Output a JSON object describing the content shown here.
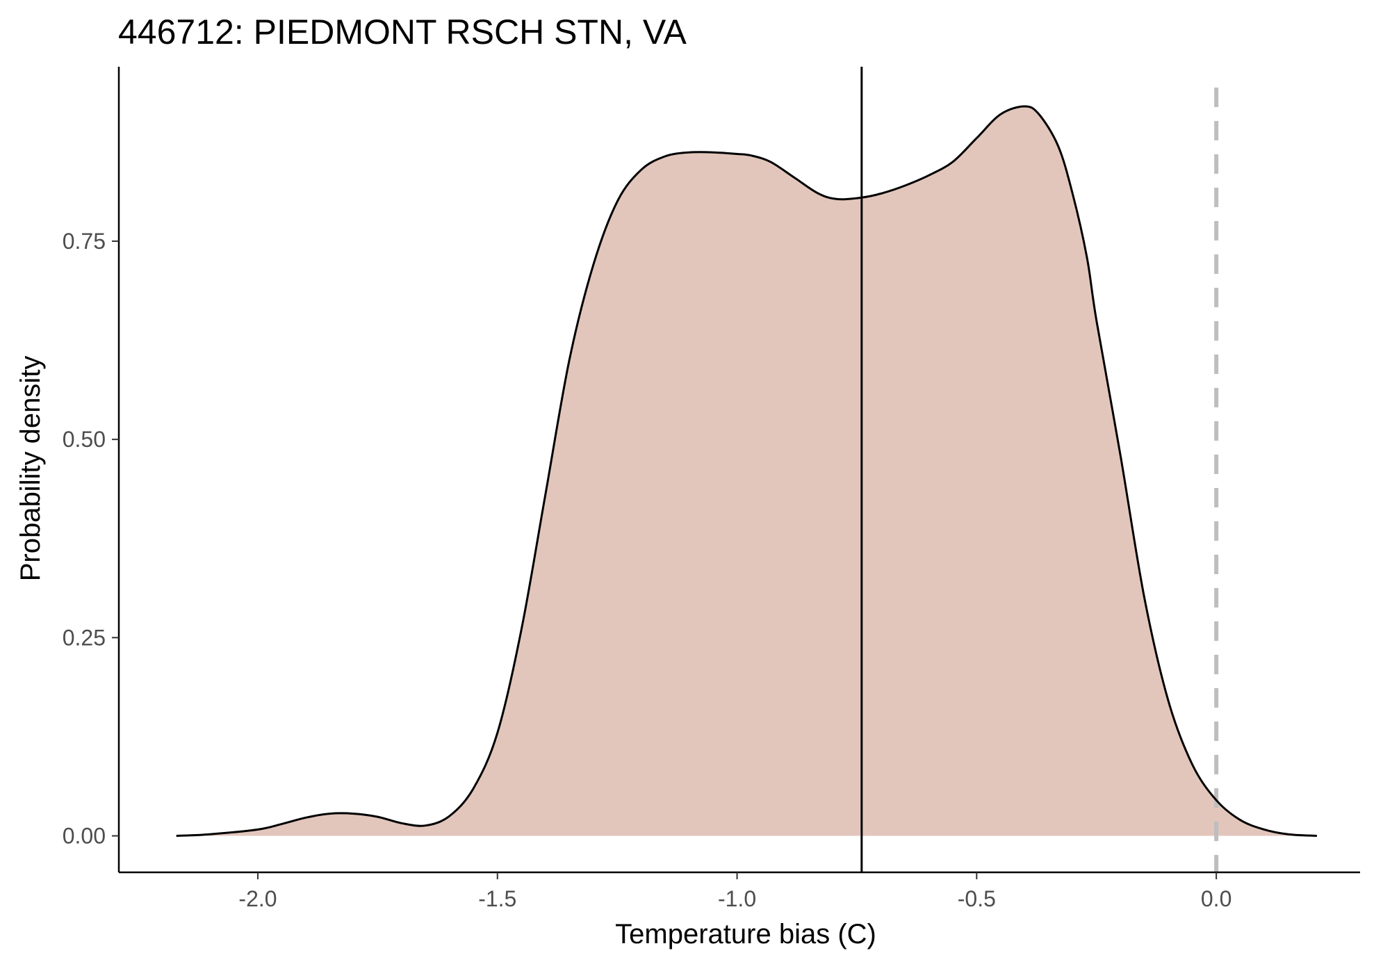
{
  "chart_data": {
    "type": "area",
    "title": "446712: PIEDMONT RSCH STN, VA",
    "xlabel": "Temperature bias (C)",
    "ylabel": "Probability density",
    "xlim": [
      -2.29,
      0.3
    ],
    "ylim": [
      -0.046,
      0.97
    ],
    "x_ticks": [
      -2.0,
      -1.5,
      -1.0,
      -0.5,
      0.0
    ],
    "x_tick_labels": [
      "-2.0",
      "-1.5",
      "-1.0",
      "-0.5",
      "0.0"
    ],
    "y_ticks": [
      0.0,
      0.25,
      0.5,
      0.75
    ],
    "y_tick_labels": [
      "0.00",
      "0.25",
      "0.50",
      "0.75"
    ],
    "grid": false,
    "legend": "none",
    "density": {
      "x": [
        -2.17,
        -2.1,
        -2.0,
        -1.95,
        -1.9,
        -1.85,
        -1.8,
        -1.75,
        -1.7,
        -1.65,
        -1.6,
        -1.55,
        -1.5,
        -1.45,
        -1.4,
        -1.35,
        -1.3,
        -1.25,
        -1.2,
        -1.15,
        -1.1,
        -1.05,
        -1.0,
        -0.97,
        -0.93,
        -0.88,
        -0.83,
        -0.79,
        -0.74,
        -0.7,
        -0.65,
        -0.6,
        -0.55,
        -0.5,
        -0.45,
        -0.4,
        -0.37,
        -0.33,
        -0.3,
        -0.27,
        -0.25,
        -0.2,
        -0.15,
        -0.1,
        -0.05,
        0.0,
        0.05,
        0.1,
        0.15,
        0.21
      ],
      "y": [
        0.0,
        0.002,
        0.008,
        0.015,
        0.023,
        0.028,
        0.028,
        0.024,
        0.016,
        0.013,
        0.025,
        0.06,
        0.13,
        0.26,
        0.43,
        0.6,
        0.72,
        0.8,
        0.84,
        0.857,
        0.862,
        0.862,
        0.86,
        0.858,
        0.85,
        0.83,
        0.81,
        0.803,
        0.805,
        0.81,
        0.82,
        0.833,
        0.85,
        0.88,
        0.91,
        0.92,
        0.91,
        0.87,
        0.81,
        0.73,
        0.65,
        0.48,
        0.3,
        0.17,
        0.09,
        0.045,
        0.02,
        0.008,
        0.002,
        0.0
      ],
      "fill_color": "#e2c6bc",
      "line_color": "#000000"
    },
    "annotations": [
      {
        "type": "vline",
        "x": -0.74,
        "style": "solid",
        "color": "#000000"
      },
      {
        "type": "vline",
        "x": 0.0,
        "style": "dashed",
        "color": "#bebebe"
      }
    ]
  }
}
